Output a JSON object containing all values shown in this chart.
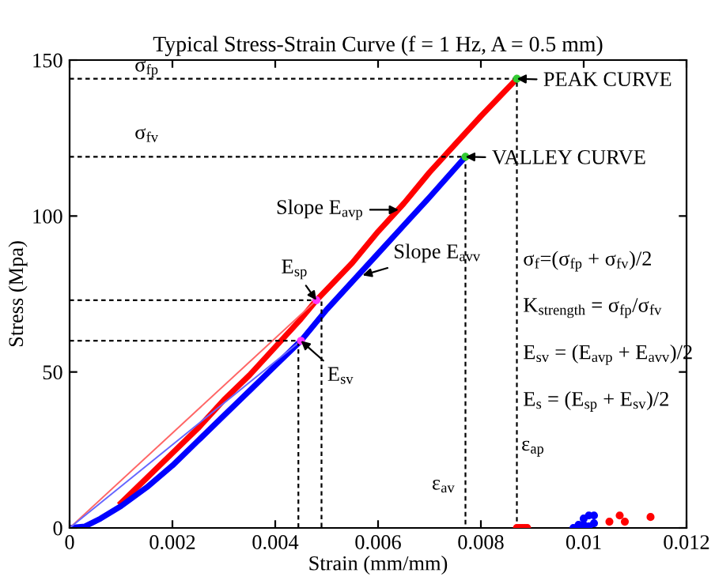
{
  "chart_data": {
    "type": "line",
    "title": "Typical Stress-Strain Curve (f = 1 Hz, A = 0.5 mm)",
    "xlabel": "Strain (mm/mm)",
    "ylabel": "Stress (Mpa)",
    "xlim": [
      0,
      0.012
    ],
    "ylim": [
      0,
      150
    ],
    "xticks": [
      0,
      0.002,
      0.004,
      0.006,
      0.008,
      0.01,
      0.012
    ],
    "yticks": [
      0,
      50,
      100,
      150
    ],
    "grid": false,
    "legend": false,
    "series": [
      {
        "color": "#ff0000",
        "x": [
          0.001,
          0.0015,
          0.002,
          0.0025,
          0.003,
          0.0035,
          0.004,
          0.0045,
          0.0048,
          0.0055,
          0.006,
          0.0065,
          0.007,
          0.0075,
          0.008,
          0.0087
        ],
        "values": [
          8,
          16,
          24,
          32,
          41,
          49,
          58,
          67,
          73,
          85,
          95,
          104,
          114,
          123,
          132,
          144
        ]
      },
      {
        "color": "#0000ff",
        "x": [
          0,
          0.0003,
          0.0006,
          0.001,
          0.0015,
          0.002,
          0.0025,
          0.003,
          0.0035,
          0.004,
          0.0045,
          0.005,
          0.0055,
          0.006,
          0.0065,
          0.007,
          0.0077
        ],
        "values": [
          0,
          0.5,
          3,
          7,
          13,
          20,
          28,
          36,
          44,
          52,
          60,
          70,
          79,
          88,
          97,
          106,
          119
        ]
      },
      {
        "color": "#ff6666",
        "x": [
          0,
          0.0048
        ],
        "values": [
          0,
          73
        ]
      },
      {
        "color": "#6666ff",
        "x": [
          0,
          0.0045
        ],
        "values": [
          0,
          60
        ]
      },
      {
        "color": "#000000",
        "line_style": "dashed",
        "x": [
          0,
          0.0087,
          0.0087
        ],
        "values": [
          144,
          144,
          0
        ]
      },
      {
        "color": "#000000",
        "line_style": "dashed",
        "x": [
          0,
          0.0077,
          0.0077
        ],
        "values": [
          119,
          119,
          0
        ]
      },
      {
        "color": "#000000",
        "line_style": "dashed",
        "x": [
          0,
          0.0049,
          0.0049
        ],
        "values": [
          73,
          73,
          0
        ]
      },
      {
        "color": "#000000",
        "line_style": "dashed",
        "x": [
          0,
          0.00445,
          0.00445
        ],
        "values": [
          60,
          60,
          0
        ]
      },
      {
        "type": "scatter",
        "color": "#33cc33",
        "x": [
          0.0087,
          0.0077
        ],
        "values": [
          144,
          119
        ]
      },
      {
        "type": "scatter",
        "color": "#ff33ff",
        "x": [
          0.0048,
          0.0045
        ],
        "values": [
          73,
          60
        ]
      },
      {
        "type": "scatter",
        "color": "#ff0000",
        "x": [
          0.0087,
          0.00875,
          0.0088,
          0.00885,
          0.0089,
          0.0105,
          0.0107,
          0.0108,
          0.0113
        ],
        "values": [
          0,
          0,
          0,
          0,
          0,
          2,
          4,
          2,
          3.5
        ]
      },
      {
        "type": "scatter",
        "color": "#0000ff",
        "x": [
          0.0098,
          0.0099,
          0.01,
          0.01,
          0.0101,
          0.0102,
          0.0101,
          0.0102
        ],
        "values": [
          0,
          1,
          1,
          3,
          4,
          4,
          0.5,
          1.5
        ]
      }
    ],
    "annotations": [
      {
        "text": "PEAK CURVE",
        "x": 0.0087,
        "y": 144
      },
      {
        "text": "VALLEY CURVE",
        "x": 0.0077,
        "y": 119
      },
      {
        "text": "Slope E$_{avp}$",
        "x": 0.0064,
        "y": 102
      },
      {
        "text": "Slope E$_{avv}$",
        "x": 0.0057,
        "y": 81
      },
      {
        "text": "E$_{sp}$",
        "x": 0.0048,
        "y": 73
      },
      {
        "text": "E$_{sv}$",
        "x": 0.0045,
        "y": 60
      },
      {
        "text": "σ$_{fp}$",
        "x": 0.0015,
        "y": 144
      },
      {
        "text": "σ$_{fv}$",
        "x": 0.0015,
        "y": 119
      },
      {
        "text": "ε$_{av}$",
        "x": 0.0077,
        "y": 8
      },
      {
        "text": "ε$_{ap}$",
        "x": 0.0087,
        "y": 20
      },
      "σ$_{f}$=(σ$_{fp}$ + σ$_{fv}$)/2",
      "K$_{strength}$ = σ$_{fp}$/σ$_{fv}$",
      "E$_{sv}$ = (E$_{avp}$ + E$_{avv}$)/2",
      "E$_{s}$ = (E$_{sp}$ + E$_{sv}$)/2"
    ]
  }
}
